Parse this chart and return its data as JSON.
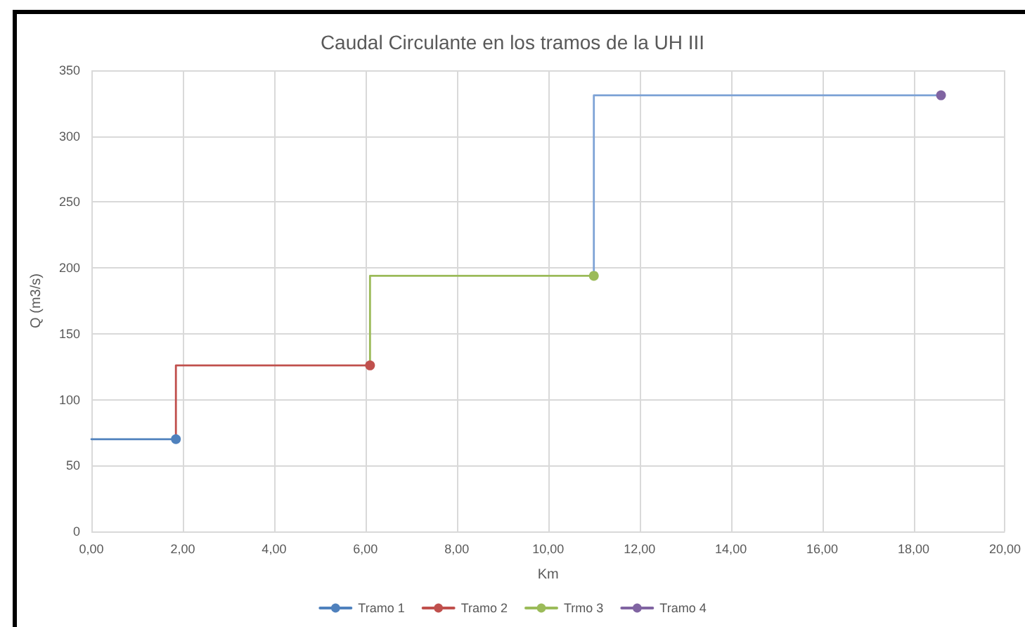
{
  "chart_data": {
    "type": "line",
    "title": "Caudal Circulante en los tramos de la UH III",
    "xlabel": "Km",
    "ylabel": "Q (m3/s)",
    "series": [
      {
        "name": "Tramo 1",
        "color": "#4f81bd",
        "x": [
          1.85
        ],
        "values": [
          70
        ]
      },
      {
        "name": "Tramo 2",
        "color": "#c0504d",
        "x": [
          6.1
        ],
        "values": [
          126
        ]
      },
      {
        "name": "Trmo 3",
        "color": "#9bbb59",
        "x": [
          11
        ],
        "values": [
          194
        ]
      },
      {
        "name": "Tramo 4",
        "color": "#8064a2",
        "x": [
          18.6
        ],
        "values": [
          331
        ]
      },
      {
        "color": "#4f81bd",
        "x": [
          0,
          1.85
        ],
        "values": [
          70,
          70
        ],
        "marker": "none"
      },
      {
        "color": "#c0504d",
        "x": [
          1.85,
          1.85,
          6.1
        ],
        "values": [
          70,
          126,
          126
        ],
        "marker": "none"
      },
      {
        "color": "#9bbb59",
        "x": [
          6.1,
          6.1,
          11
        ],
        "values": [
          126,
          194,
          194
        ],
        "marker": "none"
      },
      {
        "color": "#7ea3d6",
        "x": [
          11,
          11,
          18.6
        ],
        "values": [
          194,
          331,
          331
        ],
        "marker": "none"
      }
    ],
    "xlim": [
      0,
      20
    ],
    "xticks": [
      {
        "value": 0,
        "label": "0,00"
      },
      {
        "value": 2,
        "label": "2,00"
      },
      {
        "value": 4,
        "label": "4,00"
      },
      {
        "value": 6,
        "label": "6,00"
      },
      {
        "value": 8,
        "label": "8,00"
      },
      {
        "value": 10,
        "label": "10,00"
      },
      {
        "value": 12,
        "label": "12,00"
      },
      {
        "value": 14,
        "label": "14,00"
      },
      {
        "value": 16,
        "label": "16,00"
      },
      {
        "value": 18,
        "label": "18,00"
      },
      {
        "value": 20,
        "label": "20,00"
      }
    ],
    "ylim": [
      0,
      350
    ],
    "yticks": [
      0,
      50,
      100,
      150,
      200,
      250,
      300,
      350
    ],
    "grid": true,
    "legend": "bottom",
    "marker": "circle"
  }
}
